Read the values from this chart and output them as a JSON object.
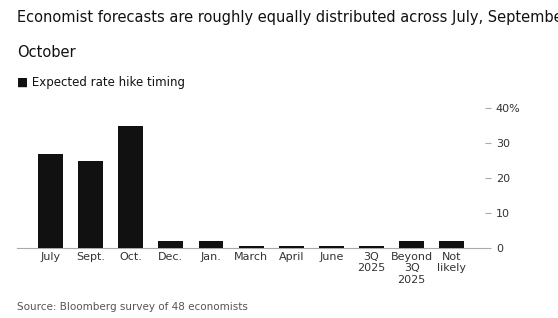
{
  "title_line1": "Economist forecasts are roughly equally distributed across July, September,",
  "title_line2": "October",
  "legend_label": "■ Expected rate hike timing",
  "source": "Source: Bloomberg survey of 48 economists",
  "categories": [
    "July",
    "Sept.",
    "Oct.",
    "Dec.",
    "Jan.",
    "March",
    "April",
    "June",
    "3Q\n2025",
    "Beyond\n3Q\n2025",
    "Not\nlikely"
  ],
  "values": [
    27,
    25,
    35,
    2.0,
    2.0,
    0.5,
    0.5,
    0.5,
    0.5,
    2.0,
    2.0
  ],
  "bar_color": "#111111",
  "ylim": [
    0,
    40
  ],
  "yticks": [
    0,
    10,
    20,
    30,
    40
  ],
  "background_color": "#ffffff",
  "title_fontsize": 10.5,
  "legend_fontsize": 8.5,
  "tick_fontsize": 8,
  "source_fontsize": 7.5
}
